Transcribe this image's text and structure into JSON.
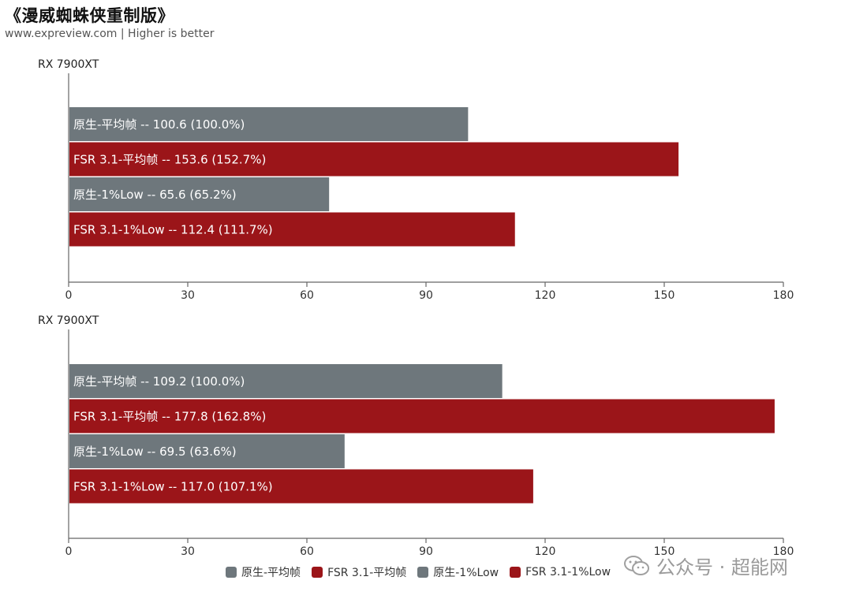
{
  "title": "《漫威蜘蛛侠重制版》",
  "subtitle": "www.expreview.com | Higher is better",
  "watermark": "公众号 · 超能网",
  "colors": {
    "native": "#6e777c",
    "fsr": "#9b1519",
    "axis": "#666666"
  },
  "legend": [
    {
      "label": "原生-平均帧",
      "color": "#6e777c"
    },
    {
      "label": "FSR 3.1-平均帧",
      "color": "#9b1519"
    },
    {
      "label": "原生-1%Low",
      "color": "#6e777c"
    },
    {
      "label": "FSR 3.1-1%Low",
      "color": "#9b1519"
    }
  ],
  "chart_data": [
    {
      "type": "bar",
      "orientation": "horizontal",
      "label": "RX 7900XT",
      "xlim": [
        0,
        180
      ],
      "xticks": [
        0,
        30,
        60,
        90,
        120,
        150,
        180
      ],
      "bars": [
        {
          "series": "原生-平均帧",
          "value": 100.6,
          "text": "原生-平均帧  --  100.6 (100.0%)",
          "color": "#6e777c"
        },
        {
          "series": "FSR 3.1-平均帧",
          "value": 153.6,
          "text": "FSR 3.1-平均帧  --  153.6 (152.7%)",
          "color": "#9b1519"
        },
        {
          "series": "原生-1%Low",
          "value": 65.6,
          "text": "原生-1%Low  --  65.6 (65.2%)",
          "color": "#6e777c"
        },
        {
          "series": "FSR 3.1-1%Low",
          "value": 112.4,
          "text": "FSR 3.1-1%Low  --  112.4 (111.7%)",
          "color": "#9b1519"
        }
      ]
    },
    {
      "type": "bar",
      "orientation": "horizontal",
      "label": "RX 7900XT",
      "xlim": [
        0,
        180
      ],
      "xticks": [
        0,
        30,
        60,
        90,
        120,
        150,
        180
      ],
      "bars": [
        {
          "series": "原生-平均帧",
          "value": 109.2,
          "text": "原生-平均帧  --  109.2 (100.0%)",
          "color": "#6e777c"
        },
        {
          "series": "FSR 3.1-平均帧",
          "value": 177.8,
          "text": "FSR 3.1-平均帧  --  177.8 (162.8%)",
          "color": "#9b1519"
        },
        {
          "series": "原生-1%Low",
          "value": 69.5,
          "text": "原生-1%Low  --  69.5 (63.6%)",
          "color": "#6e777c"
        },
        {
          "series": "FSR 3.1-1%Low",
          "value": 117.0,
          "text": "FSR 3.1-1%Low  --  117.0 (107.1%)",
          "color": "#9b1519"
        }
      ]
    }
  ]
}
